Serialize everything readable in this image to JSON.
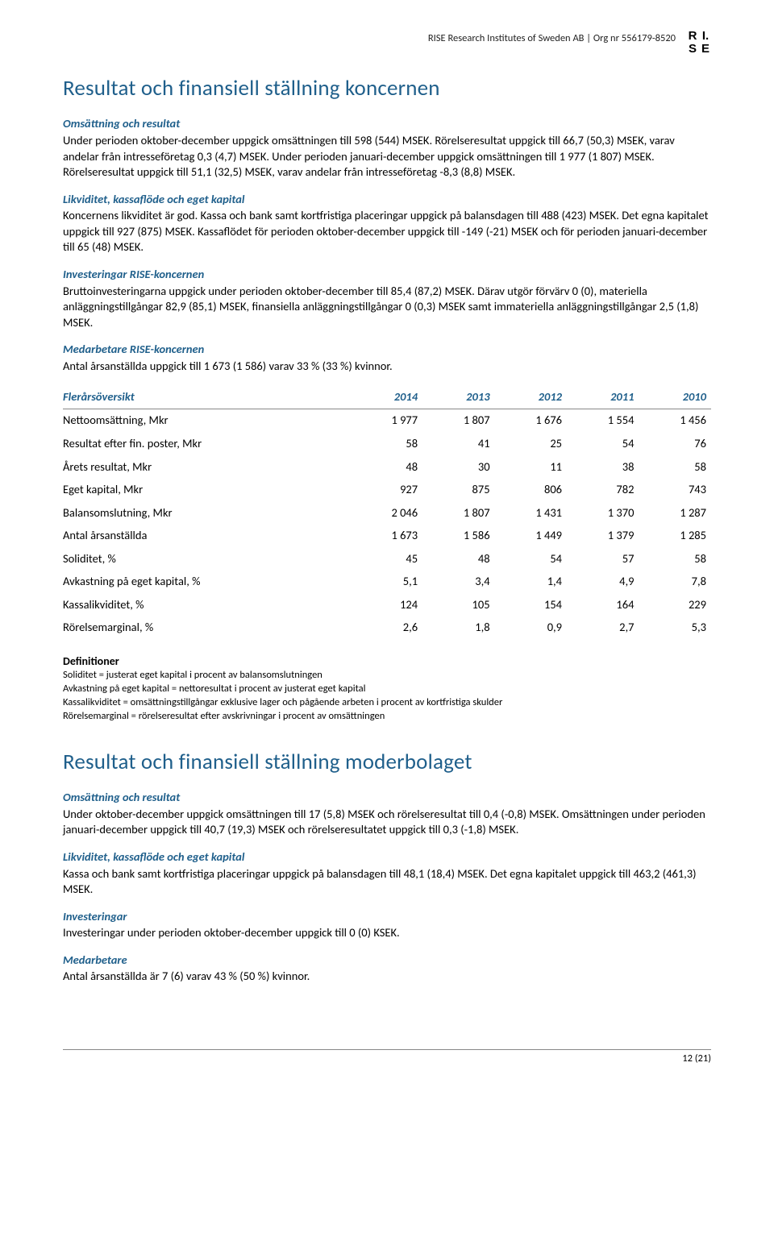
{
  "header": {
    "org_line": "RISE Research Institutes of Sweden AB | Org nr 556179-8520",
    "logo": {
      "tl": "R",
      "tr": "I.",
      "bl": "S",
      "br": "E"
    }
  },
  "section1": {
    "title": "Resultat och finansiell ställning koncernen",
    "blocks": [
      {
        "head": "Omsättning och resultat",
        "text": "Under perioden oktober-december uppgick omsättningen till 598 (544) MSEK. Rörelseresultat uppgick till 66,7 (50,3) MSEK, varav andelar från intresseföretag 0,3 (4,7) MSEK. Under perioden januari-december uppgick omsättningen till 1 977 (1 807) MSEK. Rörelseresultat uppgick till 51,1 (32,5) MSEK, varav andelar från intresseföretag -8,3 (8,8) MSEK."
      },
      {
        "head": "Likviditet, kassaflöde och eget kapital",
        "text": "Koncernens likviditet är god. Kassa och bank samt kortfristiga placeringar uppgick på balansdagen till 488 (423) MSEK. Det egna kapitalet uppgick till 927 (875) MSEK. Kassaflödet för perioden oktober-december uppgick till -149 (-21) MSEK och för perioden januari-december till 65 (48) MSEK."
      },
      {
        "head": "Investeringar RISE-koncernen",
        "text": "Bruttoinvesteringarna uppgick under perioden oktober-december till 85,4 (87,2) MSEK. Därav utgör förvärv 0 (0), materiella anläggningstillgångar 82,9 (85,1) MSEK, finansiella anläggningstillgångar 0 (0,3) MSEK samt immateriella anläggningstillgångar 2,5 (1,8) MSEK."
      },
      {
        "head": "Medarbetare RISE-koncernen",
        "text": "Antal årsanställda uppgick till 1 673 (1 586) varav 33 % (33 %) kvinnor."
      }
    ]
  },
  "table": {
    "title": "Flerårsöversikt",
    "columns": [
      "2014",
      "2013",
      "2012",
      "2011",
      "2010"
    ],
    "rows": [
      [
        "Nettoomsättning, Mkr",
        "1 977",
        "1 807",
        "1 676",
        "1 554",
        "1 456"
      ],
      [
        "Resultat efter fin. poster, Mkr",
        "58",
        "41",
        "25",
        "54",
        "76"
      ],
      [
        "Årets resultat, Mkr",
        "48",
        "30",
        "11",
        "38",
        "58"
      ],
      [
        "Eget kapital, Mkr",
        "927",
        "875",
        "806",
        "782",
        "743"
      ],
      [
        "Balansomslutning, Mkr",
        "2 046",
        "1 807",
        "1 431",
        "1 370",
        "1 287"
      ],
      [
        "Antal årsanställda",
        "1 673",
        "1 586",
        "1 449",
        "1 379",
        "1 285"
      ],
      [
        "Soliditet, %",
        "45",
        "48",
        "54",
        "57",
        "58"
      ],
      [
        "Avkastning på eget kapital, %",
        "5,1",
        "3,4",
        "1,4",
        "4,9",
        "7,8"
      ],
      [
        "Kassalikviditet, %",
        "124",
        "105",
        "154",
        "164",
        "229"
      ],
      [
        "Rörelsemarginal, %",
        "2,6",
        "1,8",
        "0,9",
        "2,7",
        "5,3"
      ]
    ]
  },
  "definitions": {
    "head": "Definitioner",
    "lines": [
      "Soliditet = justerat eget kapital i procent av balansomslutningen",
      "Avkastning på eget kapital = nettoresultat i procent av justerat eget kapital",
      "Kassalikviditet = omsättningstillgångar exklusive lager och pågående arbeten i procent av kortfristiga skulder",
      "Rörelsemarginal = rörelseresultat efter avskrivningar i procent av omsättningen"
    ]
  },
  "section2": {
    "title": "Resultat och finansiell ställning moderbolaget",
    "blocks": [
      {
        "head": "Omsättning och resultat",
        "text": "Under oktober-december uppgick omsättningen till 17 (5,8) MSEK och rörelseresultat till 0,4 (-0,8) MSEK. Omsättningen under perioden januari-december uppgick till 40,7 (19,3) MSEK och rörelseresultatet uppgick till 0,3 (-1,8) MSEK."
      },
      {
        "head": "Likviditet, kassaflöde och eget kapital",
        "text": "Kassa och bank samt kortfristiga placeringar uppgick på balansdagen till 48,1 (18,4) MSEK. Det egna kapitalet uppgick till 463,2 (461,3) MSEK."
      },
      {
        "head": "Investeringar",
        "text": "Investeringar under perioden oktober-december uppgick till 0 (0) KSEK."
      },
      {
        "head": "Medarbetare",
        "text": "Antal årsanställda är 7 (6) varav 43 % (50 %) kvinnor."
      }
    ]
  },
  "footer": {
    "page": "12 (21)"
  }
}
